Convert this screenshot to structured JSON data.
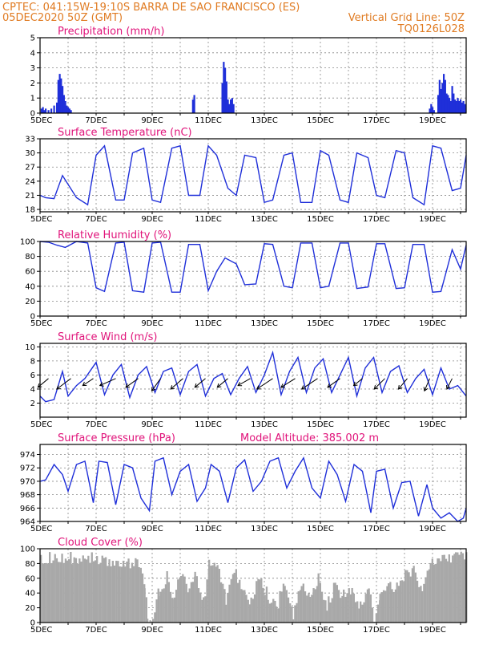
{
  "header": {
    "line1_left": "CPTEC:   041:15W-19:10S  BARRA DE SAO FRANCISCO (ES)",
    "line2_left": "05DEC2020 50Z (GMT)",
    "line2_right": "Vertical Grid Line: 50Z",
    "line3_right": "TQ0126L028"
  },
  "colors": {
    "series": "#1f2fd9",
    "cloud": "#a8a8a8",
    "header": "#e07b22",
    "title": "#e0137a"
  },
  "x_tick_labels": [
    "5DEC",
    "7DEC",
    "9DEC",
    "11DEC",
    "13DEC",
    "15DEC",
    "17DEC",
    "19DEC"
  ],
  "chart_data": [
    {
      "id": "precip",
      "type": "bar",
      "title": "Precipitation (mm/h)",
      "ylim": [
        0,
        5
      ],
      "yticks": [
        0,
        1,
        2,
        3,
        4,
        5
      ],
      "x_range_days": [
        5,
        20.2
      ],
      "series": [
        {
          "x": [
            5.05,
            5.1,
            5.15,
            5.2,
            5.3,
            5.4,
            5.5,
            5.6,
            5.65,
            5.7,
            5.75,
            5.8,
            5.85,
            5.9,
            5.95,
            6.0,
            6.05,
            6.1,
            10.45,
            10.5,
            11.5,
            11.55,
            11.6,
            11.65,
            11.7,
            11.75,
            11.8,
            11.85,
            11.9,
            18.9,
            18.95,
            19.0,
            19.05,
            19.2,
            19.25,
            19.3,
            19.35,
            19.4,
            19.45,
            19.5,
            19.55,
            19.6,
            19.65,
            19.7,
            19.75,
            19.8,
            19.85,
            19.9,
            19.95,
            20.0,
            20.05,
            20.1,
            20.15
          ],
          "values": [
            0.3,
            0.4,
            0.2,
            0.3,
            0.2,
            0.3,
            0.5,
            0.7,
            2.2,
            2.6,
            2.3,
            1.8,
            1.2,
            0.8,
            0.5,
            0.4,
            0.3,
            0.2,
            0.9,
            1.2,
            2.0,
            3.4,
            3.0,
            2.1,
            0.9,
            0.6,
            0.9,
            1.0,
            0.6,
            0.3,
            0.6,
            0.4,
            0.2,
            1.2,
            2.2,
            1.6,
            2.0,
            2.6,
            2.2,
            1.3,
            1.2,
            1.0,
            0.8,
            1.8,
            1.3,
            0.9,
            0.8,
            1.0,
            0.8,
            0.9,
            0.7,
            0.8,
            0.6
          ]
        }
      ]
    },
    {
      "id": "temp",
      "type": "line",
      "title": "Surface Temperature (nC)",
      "ylim": [
        17.5,
        33
      ],
      "yticks": [
        18,
        21,
        24,
        27,
        30,
        33
      ],
      "x_range_days": [
        5,
        20.2
      ],
      "series": [
        {
          "x": [
            5.0,
            5.2,
            5.5,
            5.8,
            6.3,
            6.7,
            7.0,
            7.3,
            7.7,
            8.0,
            8.3,
            8.7,
            9.0,
            9.3,
            9.7,
            10.0,
            10.3,
            10.7,
            11.0,
            11.3,
            11.7,
            12.0,
            12.3,
            12.7,
            13.0,
            13.3,
            13.7,
            14.0,
            14.3,
            14.7,
            15.0,
            15.3,
            15.7,
            16.0,
            16.3,
            16.7,
            17.0,
            17.3,
            17.7,
            18.0,
            18.3,
            18.7,
            19.0,
            19.3,
            19.7,
            20.0,
            20.2
          ],
          "values": [
            21.0,
            20.5,
            20.3,
            25.2,
            20.5,
            19.0,
            29.5,
            31.5,
            20.0,
            20.0,
            30.0,
            31.0,
            20.0,
            19.5,
            31.0,
            31.5,
            21.0,
            21.0,
            31.5,
            29.5,
            22.5,
            21.0,
            29.5,
            29.0,
            19.5,
            20.0,
            29.5,
            30.0,
            19.5,
            19.5,
            30.5,
            29.5,
            20.0,
            19.5,
            30.0,
            29.0,
            21.0,
            20.5,
            30.5,
            30.0,
            20.5,
            19.0,
            31.5,
            31.0,
            22.0,
            22.5,
            29.5
          ]
        }
      ]
    },
    {
      "id": "rh",
      "type": "line",
      "title": "Relative Humidity (%)",
      "ylim": [
        0,
        100
      ],
      "yticks": [
        0,
        20,
        40,
        60,
        80,
        100
      ],
      "x_range_days": [
        5,
        20.2
      ],
      "series": [
        {
          "x": [
            5.0,
            5.3,
            5.6,
            5.9,
            6.3,
            6.7,
            7.0,
            7.3,
            7.7,
            8.0,
            8.3,
            8.7,
            9.0,
            9.3,
            9.7,
            10.0,
            10.3,
            10.7,
            11.0,
            11.3,
            11.6,
            12.0,
            12.3,
            12.7,
            13.0,
            13.3,
            13.7,
            14.0,
            14.3,
            14.7,
            15.0,
            15.3,
            15.7,
            16.0,
            16.3,
            16.7,
            17.0,
            17.3,
            17.7,
            18.0,
            18.3,
            18.7,
            19.0,
            19.3,
            19.7,
            20.0,
            20.2
          ],
          "values": [
            100,
            99,
            95,
            92,
            100,
            98,
            38,
            33,
            98,
            99,
            34,
            32,
            98,
            99,
            32,
            32,
            96,
            96,
            34,
            60,
            78,
            70,
            42,
            43,
            97,
            96,
            40,
            38,
            98,
            98,
            38,
            40,
            98,
            98,
            37,
            39,
            97,
            97,
            37,
            38,
            96,
            96,
            32,
            33,
            89,
            63,
            95
          ]
        }
      ]
    },
    {
      "id": "wind",
      "type": "line",
      "title": "Surface Wind (m/s)",
      "ylim": [
        0,
        10.5
      ],
      "yticks": [
        2,
        4,
        6,
        8,
        10
      ],
      "x_range_days": [
        5,
        20.2
      ],
      "series": [
        {
          "x": [
            5.0,
            5.2,
            5.5,
            5.8,
            6.0,
            6.3,
            6.6,
            7.0,
            7.3,
            7.6,
            7.9,
            8.2,
            8.5,
            8.8,
            9.1,
            9.4,
            9.7,
            10.0,
            10.3,
            10.6,
            10.9,
            11.2,
            11.5,
            11.8,
            12.1,
            12.4,
            12.7,
            13.0,
            13.3,
            13.6,
            13.9,
            14.2,
            14.5,
            14.8,
            15.1,
            15.4,
            15.7,
            16.0,
            16.3,
            16.6,
            16.9,
            17.2,
            17.5,
            17.8,
            18.1,
            18.4,
            18.7,
            19.0,
            19.3,
            19.6,
            19.9,
            20.2
          ],
          "values": [
            3,
            2.2,
            2.5,
            6.5,
            3,
            4.5,
            5.5,
            7.8,
            3.2,
            6,
            7.5,
            2.8,
            6,
            7.2,
            3.5,
            6.5,
            7,
            3.2,
            6.5,
            7.5,
            3,
            5.5,
            6.2,
            3.2,
            5.5,
            7.2,
            3.5,
            6,
            9.2,
            3.2,
            6.5,
            8.5,
            3.5,
            7,
            8.3,
            3.5,
            6,
            8.5,
            3,
            7,
            8.5,
            3.5,
            6.5,
            7.3,
            3.5,
            5.5,
            6.8,
            3.2,
            7,
            4,
            4.5,
            3
          ]
        }
      ],
      "vectors": {
        "x": [
          5.3,
          6.1,
          6.9,
          7.7,
          8.5,
          9.3,
          10.1,
          10.9,
          11.7,
          12.5,
          13.3,
          14.1,
          14.9,
          15.7,
          16.5,
          17.3,
          18.1,
          18.9,
          19.7
        ],
        "u": [
          -0.6,
          -0.8,
          -0.6,
          -0.9,
          -0.7,
          -0.5,
          -0.7,
          -0.6,
          -0.6,
          -0.7,
          -0.9,
          -0.8,
          -0.9,
          -0.7,
          -0.5,
          -0.6,
          -0.5,
          -0.3,
          -0.3
        ],
        "v": [
          -0.5,
          -0.6,
          -0.4,
          -0.4,
          -0.5,
          -0.7,
          -0.6,
          -0.5,
          -0.5,
          -0.4,
          -0.6,
          -0.5,
          -0.6,
          -0.5,
          -0.4,
          -0.6,
          -0.6,
          -0.7,
          -0.6
        ]
      }
    },
    {
      "id": "pres",
      "type": "line",
      "title": "Surface Pressure (hPa)",
      "extra": "Model Altitude: 385.002 m",
      "ylim": [
        964,
        975.5
      ],
      "yticks": [
        964,
        966,
        968,
        970,
        972,
        974
      ],
      "x_range_days": [
        5,
        20.2
      ],
      "series": [
        {
          "x": [
            5.0,
            5.2,
            5.5,
            5.8,
            6.0,
            6.3,
            6.6,
            6.9,
            7.1,
            7.4,
            7.7,
            8.0,
            8.3,
            8.6,
            8.9,
            9.1,
            9.4,
            9.7,
            10.0,
            10.3,
            10.6,
            10.9,
            11.1,
            11.4,
            11.7,
            12.0,
            12.3,
            12.6,
            12.9,
            13.2,
            13.5,
            13.8,
            14.1,
            14.4,
            14.7,
            15.0,
            15.3,
            15.6,
            15.9,
            16.2,
            16.5,
            16.8,
            17.0,
            17.3,
            17.6,
            17.9,
            18.2,
            18.5,
            18.8,
            19.0,
            19.3,
            19.6,
            19.9,
            20.1,
            20.2
          ],
          "values": [
            970,
            970.2,
            972.5,
            971,
            968.5,
            972.5,
            973,
            966.8,
            973,
            972.8,
            966.5,
            972.5,
            972,
            967.5,
            965.6,
            973,
            973.5,
            968,
            971.5,
            972.5,
            967,
            969,
            972.5,
            971.5,
            966.8,
            972,
            973.2,
            968.5,
            970,
            973,
            973.5,
            969,
            971.5,
            973.5,
            969,
            967.5,
            973,
            971,
            967,
            972.5,
            971.5,
            965.3,
            971.5,
            971.8,
            966,
            969.8,
            970,
            964.8,
            969.5,
            966,
            964.5,
            965.3,
            964,
            964.5,
            966
          ]
        }
      ]
    },
    {
      "id": "cloud",
      "type": "area",
      "title": "Cloud Cover (%)",
      "ylim": [
        0,
        100
      ],
      "yticks": [
        0,
        20,
        40,
        60,
        80,
        100
      ],
      "x_range_days": [
        5,
        20.2
      ],
      "series": [
        {
          "x": [
            5.0,
            6.0,
            7.0,
            7.5,
            8.0,
            8.5,
            8.7,
            8.8,
            8.9,
            9.0,
            9.2,
            9.5,
            9.7,
            10.0,
            10.3,
            10.5,
            10.8,
            11.0,
            11.3,
            11.6,
            11.9,
            12.2,
            12.5,
            12.8,
            13.1,
            13.4,
            13.7,
            14.0,
            14.3,
            14.6,
            14.9,
            15.2,
            15.5,
            15.8,
            16.1,
            16.4,
            16.7,
            16.9,
            17.1,
            17.4,
            17.7,
            18.0,
            18.3,
            18.6,
            18.9,
            19.2,
            19.5,
            19.8,
            20.2
          ],
          "values": [
            97,
            97,
            95,
            90,
            92,
            88,
            60,
            20,
            8,
            12,
            50,
            70,
            40,
            72,
            55,
            80,
            35,
            92,
            88,
            40,
            80,
            60,
            35,
            70,
            45,
            30,
            60,
            20,
            65,
            40,
            70,
            30,
            60,
            45,
            55,
            30,
            60,
            10,
            40,
            55,
            60,
            75,
            80,
            50,
            95,
            98,
            97,
            98,
            98
          ]
        }
      ]
    }
  ]
}
